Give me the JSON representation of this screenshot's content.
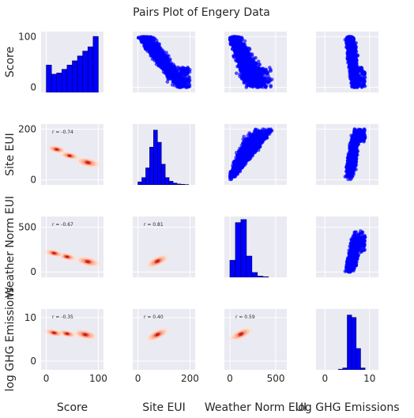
{
  "chart_data": {
    "type": "pairplot",
    "title": "Pairs Plot of Engery Data",
    "variables": [
      "Score",
      "Site EUI",
      "Weather Norm EUI",
      "log GHG Emissions"
    ],
    "axis_ranges": {
      "Score": [
        -10,
        110
      ],
      "Site EUI": [
        -20,
        220
      ],
      "Weather Norm EUI": [
        -60,
        620
      ],
      "log GHG Emissions": [
        -2,
        12
      ]
    },
    "ticks": {
      "Score": [
        0,
        100
      ],
      "Site EUI": [
        0,
        200
      ],
      "Weather Norm EUI": [
        0,
        500
      ],
      "log GHG Emissions": [
        0,
        10
      ]
    },
    "upper": "scatter",
    "diagonal": "histogram",
    "lower": "kde",
    "colors": {
      "scatter": "#0000ff",
      "histogram": "#0000ff",
      "kde": "Reds",
      "panel": "#eaeaf2"
    },
    "correlations": [
      {
        "row": "Site EUI",
        "col": "Score",
        "label": "r = -0.74"
      },
      {
        "row": "Weather Norm EUI",
        "col": "Score",
        "label": "r = -0.67"
      },
      {
        "row": "Weather Norm EUI",
        "col": "Site EUI",
        "label": "r = 0.81"
      },
      {
        "row": "log GHG Emissions",
        "col": "Score",
        "label": "r = -0.35"
      },
      {
        "row": "log GHG Emissions",
        "col": "Site EUI",
        "label": "r = 0.40"
      },
      {
        "row": "log GHG Emissions",
        "col": "Weather Norm EUI",
        "label": "r = 0.59"
      }
    ],
    "histograms": {
      "Score": {
        "bin_edges": [
          0,
          10,
          20,
          30,
          40,
          50,
          60,
          70,
          80,
          90,
          100
        ],
        "relative_heights": [
          0.45,
          0.3,
          0.32,
          0.38,
          0.45,
          0.52,
          0.6,
          0.68,
          0.75,
          0.92
        ]
      },
      "Site EUI": {
        "bin_edges": [
          0,
          15,
          30,
          45,
          60,
          75,
          90,
          105,
          120,
          135,
          150,
          165,
          180,
          195
        ],
        "relative_heights": [
          0.05,
          0.12,
          0.28,
          0.62,
          0.9,
          0.7,
          0.34,
          0.12,
          0.06,
          0.03,
          0.015,
          0.01,
          0.005
        ]
      },
      "Weather Norm EUI": {
        "bin_edges": [
          0,
          60,
          120,
          180,
          240,
          300,
          360,
          420
        ],
        "relative_heights": [
          0.28,
          0.9,
          0.95,
          0.35,
          0.08,
          0.02,
          0.01
        ]
      },
      "log GHG Emissions": {
        "bin_edges": [
          3,
          4,
          5,
          6,
          7,
          8,
          9
        ],
        "relative_heights": [
          0.01,
          0.03,
          0.9,
          0.86,
          0.35,
          0.03
        ]
      }
    }
  }
}
